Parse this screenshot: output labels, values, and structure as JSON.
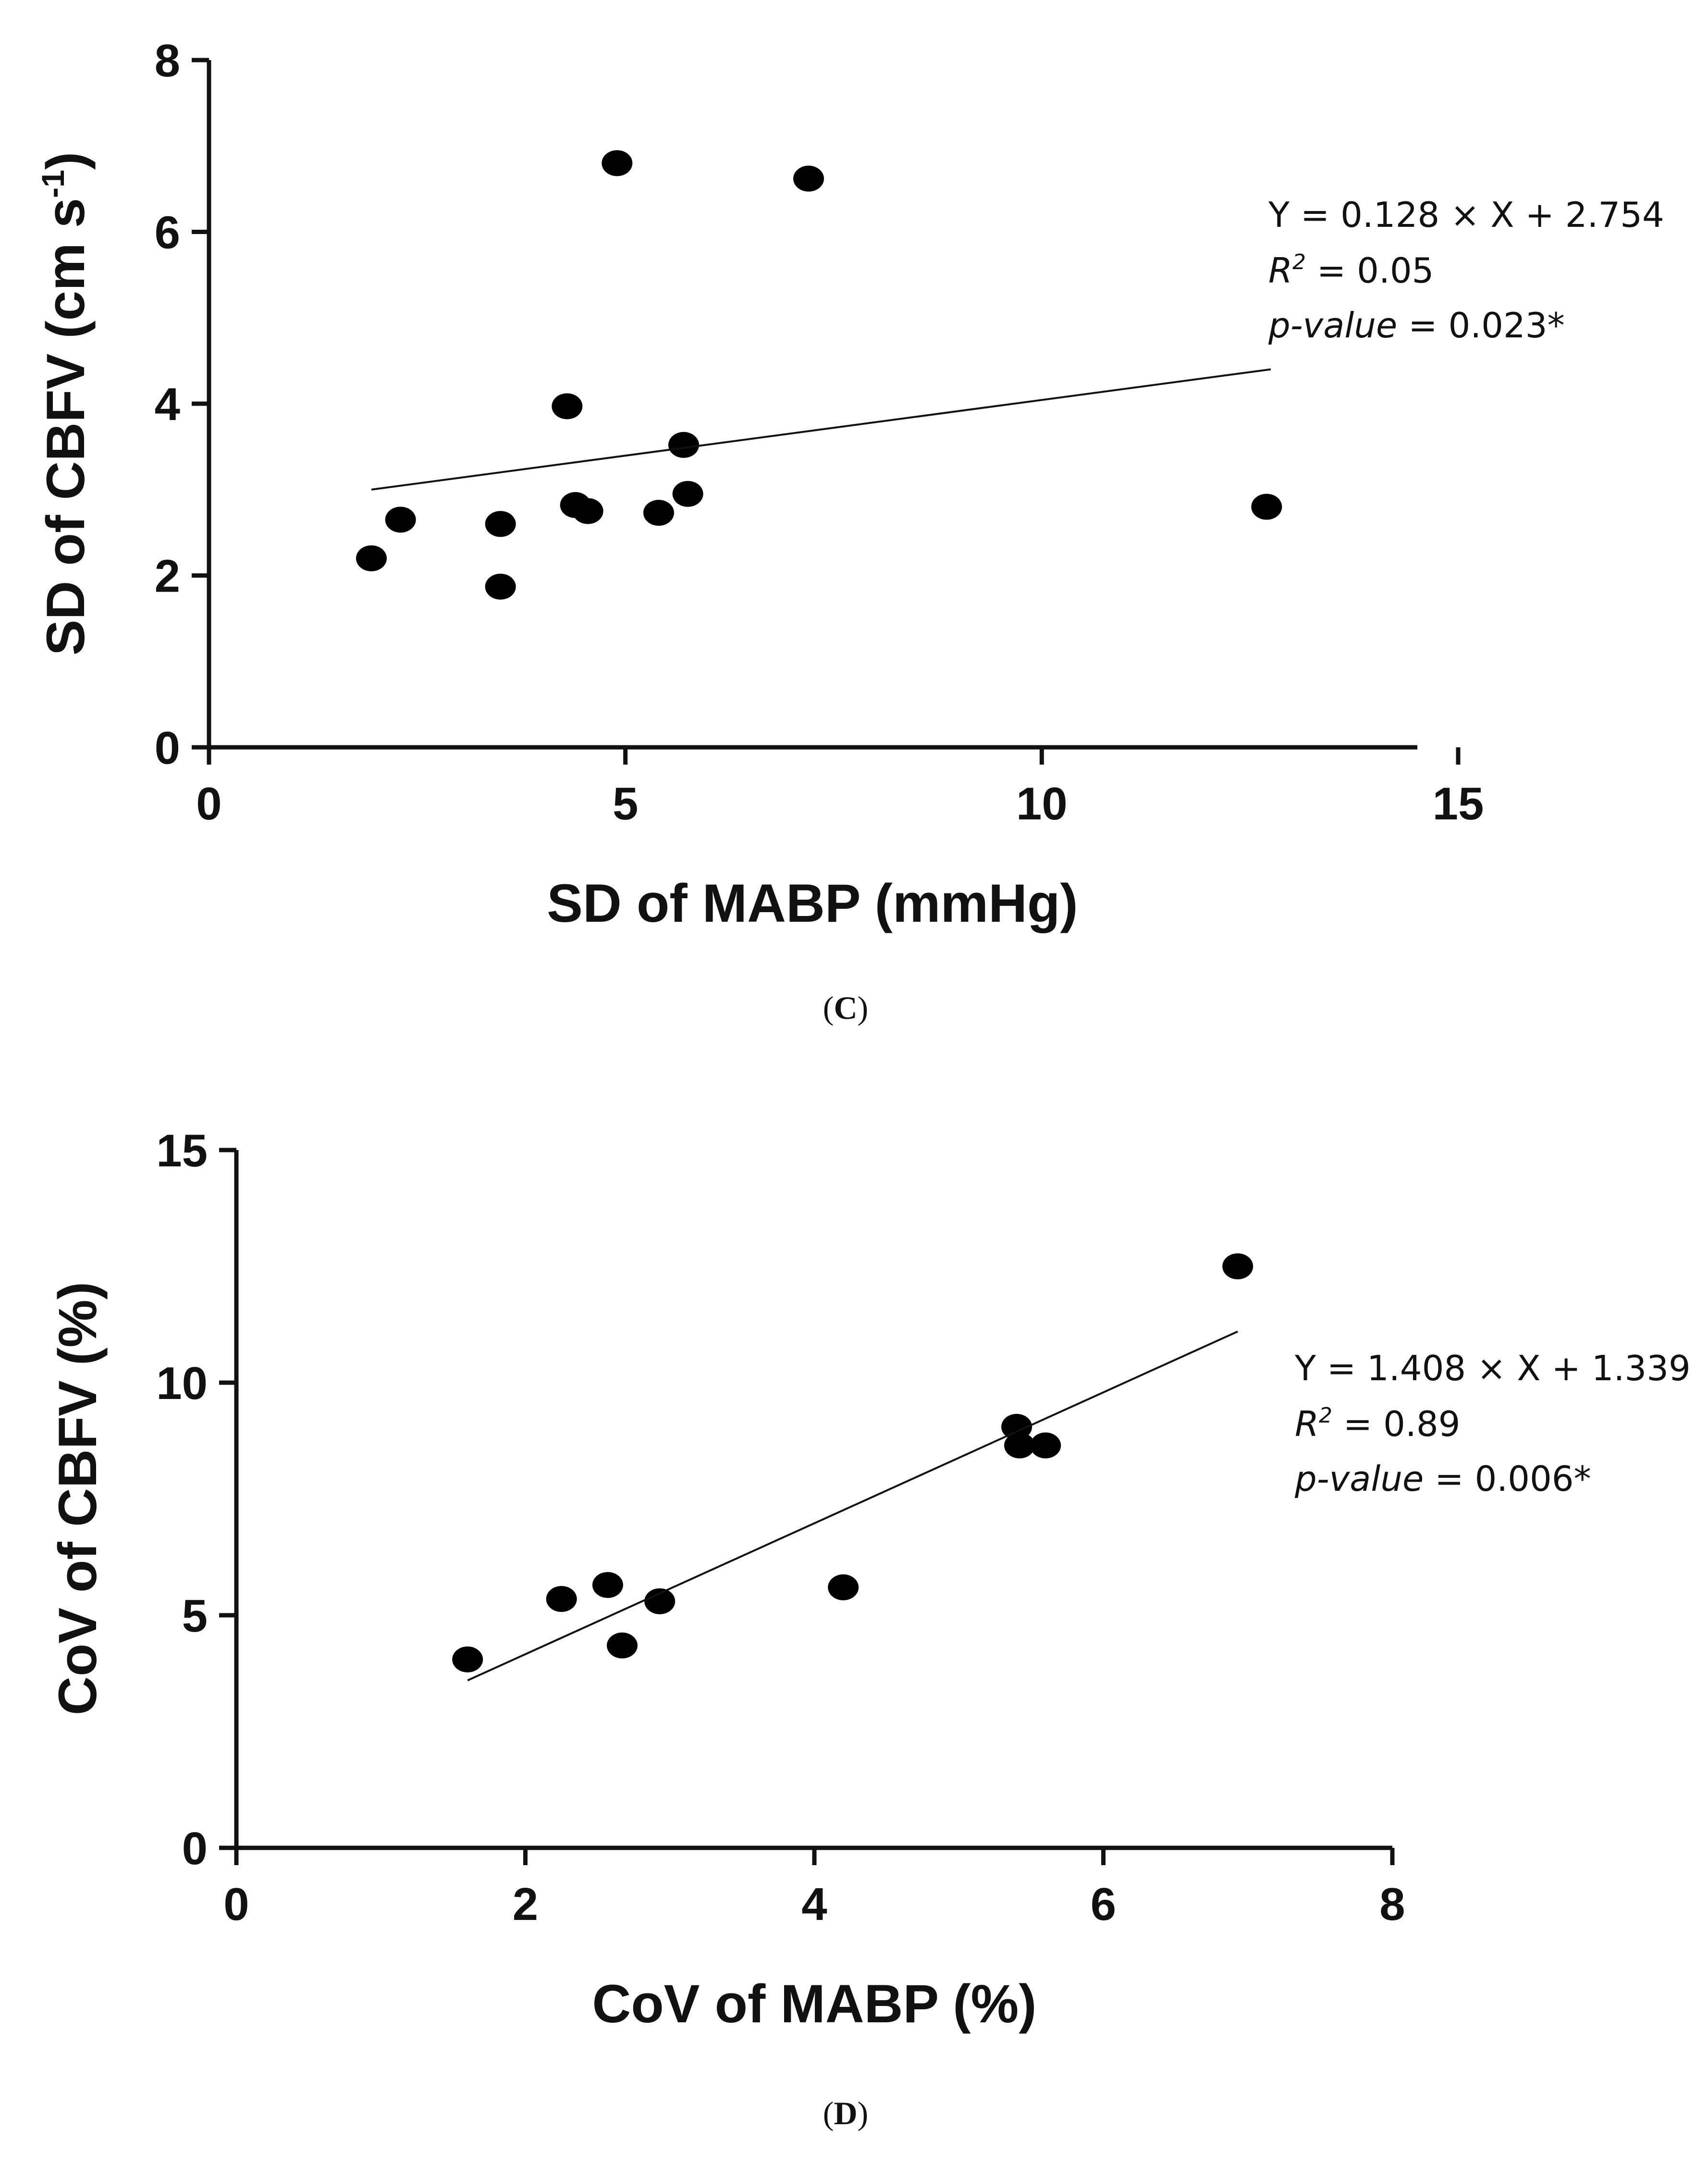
{
  "chart_data": [
    {
      "type": "scatter",
      "panel_label": "C",
      "xlabel": "SD of MABP (mmHg)",
      "ylabel_main": "SD of CBFV (cm s",
      "ylabel_superscript": "-1",
      "ylabel_close": ")",
      "xlim": [
        0,
        15
      ],
      "ylim": [
        0,
        8
      ],
      "xticks": [
        0,
        5,
        10,
        15
      ],
      "yticks": [
        0,
        2,
        4,
        6,
        8
      ],
      "points": [
        {
          "x": 1.95,
          "y": 2.2
        },
        {
          "x": 2.3,
          "y": 2.65
        },
        {
          "x": 3.5,
          "y": 2.6
        },
        {
          "x": 3.5,
          "y": 1.87
        },
        {
          "x": 4.3,
          "y": 3.97
        },
        {
          "x": 4.4,
          "y": 2.82
        },
        {
          "x": 4.55,
          "y": 2.75
        },
        {
          "x": 4.9,
          "y": 6.8
        },
        {
          "x": 5.4,
          "y": 2.73
        },
        {
          "x": 5.7,
          "y": 3.52
        },
        {
          "x": 5.75,
          "y": 2.95
        },
        {
          "x": 7.2,
          "y": 6.62
        },
        {
          "x": 12.7,
          "y": 2.8
        }
      ],
      "fit_line": {
        "x_start": 1.95,
        "y_start": 3.0,
        "x_end": 12.75,
        "y_end": 4.4
      },
      "annotation": {
        "equation": "Y = 0.128 × X + 2.754",
        "r2_label": "R",
        "r2_sup": "2",
        "r2_value": " = 0.05",
        "p_label": "p-value",
        "p_value": " = 0.023*"
      }
    },
    {
      "type": "scatter",
      "panel_label": "D",
      "xlabel": "CoV of MABP (%)",
      "ylabel": "CoV of CBFV (%)",
      "xlim": [
        0,
        8
      ],
      "ylim": [
        0,
        15
      ],
      "xticks": [
        0,
        2,
        4,
        6,
        8
      ],
      "yticks": [
        0,
        5,
        10,
        15
      ],
      "points": [
        {
          "x": 1.6,
          "y": 4.05
        },
        {
          "x": 2.25,
          "y": 5.35
        },
        {
          "x": 2.57,
          "y": 5.65
        },
        {
          "x": 2.67,
          "y": 4.35
        },
        {
          "x": 2.93,
          "y": 5.3
        },
        {
          "x": 4.2,
          "y": 5.6
        },
        {
          "x": 5.4,
          "y": 9.05
        },
        {
          "x": 5.42,
          "y": 8.65
        },
        {
          "x": 5.6,
          "y": 8.65
        },
        {
          "x": 6.93,
          "y": 12.5
        }
      ],
      "fit_line": {
        "x_start": 1.6,
        "y_start": 3.6,
        "x_end": 6.93,
        "y_end": 11.1
      },
      "annotation": {
        "equation": "Y = 1.408 × X + 1.339",
        "r2_label": "R",
        "r2_sup": "2",
        "r2_value": " = 0.89",
        "p_label": "p-value",
        "p_value": " = 0.006*"
      }
    }
  ]
}
